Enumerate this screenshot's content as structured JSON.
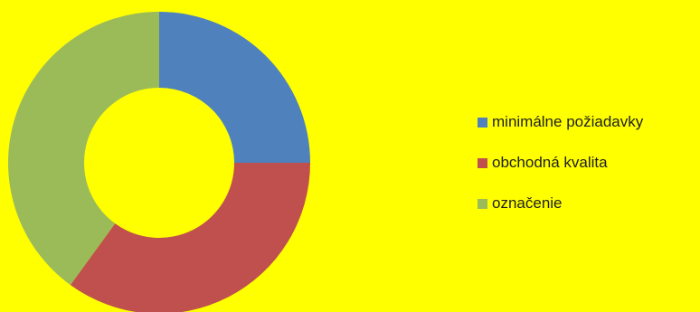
{
  "chart_data": {
    "type": "pie",
    "variant": "donut",
    "categories": [
      "minimálne požiadavky",
      "obchodná kvalita",
      "označenie"
    ],
    "values": [
      25,
      35,
      40
    ],
    "colors": [
      "#4f81bd",
      "#c0504d",
      "#9bbb59"
    ],
    "start_angle_deg": 0,
    "direction": "clockwise",
    "legend": "right",
    "title": ""
  },
  "background": "#ffff00"
}
